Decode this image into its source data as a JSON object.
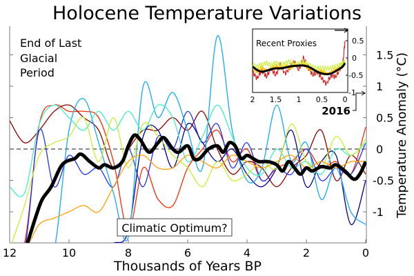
{
  "chart_data": {
    "type": "line",
    "title": "Holocene Temperature Variations",
    "xlabel": "Thousands of Years BP",
    "ylabel": "Temperature Anomaly (°C)",
    "xlim": [
      12,
      0
    ],
    "ylim": [
      -1.5,
      1.93
    ],
    "x_ticks": [
      "12",
      "10",
      "8",
      "6",
      "4",
      "2",
      "0"
    ],
    "y_ticks": [
      "1.5",
      "1",
      "0.5",
      "0",
      "-0.5",
      "-1"
    ],
    "y_tick_values": [
      1.5,
      1,
      0.5,
      0,
      -0.5,
      -1
    ],
    "zero_line": "dashed",
    "annotations": {
      "glacial": [
        "End of Last",
        "Glacial",
        "Period"
      ],
      "optimum": "Climatic Optimum?",
      "year_marker": "2016"
    },
    "x": [
      12,
      11.5,
      11,
      10.5,
      10,
      9.5,
      9,
      8.5,
      8,
      7.5,
      7,
      6.5,
      6,
      5.5,
      5,
      4.5,
      4,
      3.5,
      3,
      2.5,
      2,
      1.5,
      1,
      0.5,
      0
    ],
    "series": [
      {
        "color": "#ff2a00",
        "values": [
          -1.6,
          -1.5,
          0.4,
          0.7,
          0.6,
          0.6,
          0.5,
          -0.2,
          -1.3,
          -0.3,
          -0.8,
          -0.9,
          -0.3,
          0.0,
          0.3,
          -0.2,
          0.0,
          -0.5,
          -0.3,
          -0.2,
          0.0,
          -0.3,
          -0.2,
          -0.4,
          0.35
        ]
      },
      {
        "color": "#8b0000",
        "values": [
          0.45,
          0.1,
          0.3,
          0.6,
          0.7,
          0.5,
          0.3,
          -0.3,
          0.0,
          0.3,
          0.3,
          0.5,
          0.3,
          0.6,
          0.0,
          -0.4,
          -0.2,
          -0.3,
          -0.6,
          -0.3,
          -0.1,
          0.3,
          -0.5,
          -0.1,
          -0.4
        ]
      },
      {
        "color": "#2030ff",
        "values": [
          -1.6,
          -1.6,
          0.3,
          -0.6,
          -0.1,
          -0.4,
          -0.3,
          -0.6,
          0.0,
          -0.6,
          0.2,
          0.0,
          0.6,
          0.1,
          0.4,
          -0.3,
          0.1,
          -0.5,
          -0.3,
          -0.4,
          0.0,
          -0.5,
          -0.3,
          -0.4,
          0.1
        ]
      },
      {
        "color": "#000090",
        "values": [
          -1.6,
          -1.6,
          -1.6,
          -1.6,
          -1.6,
          -1.6,
          -1.6,
          -1.5,
          -1.3,
          0.2,
          0.3,
          -0.3,
          0.4,
          0.1,
          -0.2,
          0.0,
          -0.4,
          -0.6,
          -0.3,
          0.3,
          -0.6,
          -0.2,
          -0.1,
          -1.2,
          -0.5
        ]
      },
      {
        "color": "#10a8ff",
        "values": [
          -1.6,
          -1.6,
          -1.6,
          -1.6,
          0.3,
          0.8,
          0.1,
          -0.7,
          -1.4,
          1.0,
          0.5,
          0.9,
          0.3,
          -0.3,
          1.8,
          0.3,
          -0.5,
          -0.3,
          0.7,
          -0.2,
          0.1,
          -0.8,
          -0.3,
          -1.0,
          -1.2
        ]
      },
      {
        "color": "#40f0c8",
        "values": [
          -0.6,
          -0.7,
          0.4,
          0.7,
          0.5,
          0.3,
          0.6,
          0.3,
          0.6,
          0.3,
          0.7,
          0.5,
          -0.2,
          0.2,
          0.7,
          0.2,
          -0.3,
          -0.4,
          0.0,
          -0.3,
          -0.2,
          -0.4,
          0.0,
          -0.1,
          0.1
        ]
      },
      {
        "color": "#c8f030",
        "values": [
          -1.6,
          -0.9,
          -0.1,
          0.1,
          0.2,
          0.5,
          -0.2,
          0.5,
          -0.3,
          0.4,
          0.2,
          -0.1,
          -0.3,
          -0.6,
          -0.2,
          -0.5,
          -0.4,
          -0.2,
          -0.3,
          0.4,
          -0.2,
          -0.3,
          0.2,
          -0.1,
          0.15
        ]
      },
      {
        "color": "#ffa000",
        "values": [
          -1.6,
          -1.6,
          -1.2,
          -1.1,
          -1.0,
          -0.9,
          -1.0,
          -0.6,
          -0.2,
          -0.1,
          -0.3,
          -0.3,
          -0.1,
          -0.2,
          -0.3,
          -0.1,
          -0.2,
          -0.3,
          -0.2,
          -0.1,
          -0.3,
          -0.2,
          -0.3,
          -0.2,
          -0.2
        ]
      }
    ],
    "mean": {
      "color": "#000000",
      "x": [
        11.4,
        11.1,
        10.9,
        10.6,
        10.3,
        10.1,
        9.8,
        9.6,
        9.3,
        9.0,
        8.8,
        8.5,
        8.2,
        8.0,
        7.8,
        7.6,
        7.3,
        7.0,
        6.8,
        6.5,
        6.3,
        6.0,
        5.8,
        5.6,
        5.3,
        5.0,
        4.8,
        4.6,
        4.4,
        4.2,
        4.0,
        3.8,
        3.6,
        3.3,
        3.0,
        2.8,
        2.6,
        2.4,
        2.2,
        2.0,
        1.8,
        1.5,
        1.2,
        1.0,
        0.7,
        0.4,
        0.2,
        0
      ],
      "values": [
        -1.5,
        -1.05,
        -0.8,
        -0.6,
        -0.3,
        -0.2,
        -0.15,
        -0.08,
        -0.2,
        -0.3,
        -0.25,
        -0.3,
        -0.2,
        0.05,
        0.22,
        0.15,
        -0.05,
        0.1,
        0.18,
        0.0,
        -0.05,
        0.05,
        -0.15,
        -0.15,
        0.0,
        0.05,
        -0.05,
        0.1,
        0.05,
        -0.15,
        -0.1,
        -0.15,
        -0.2,
        -0.2,
        -0.25,
        -0.35,
        -0.2,
        -0.3,
        -0.4,
        -0.3,
        -0.35,
        -0.28,
        -0.3,
        -0.25,
        -0.35,
        -0.48,
        -0.4,
        -0.2
      ]
    },
    "inset": {
      "title": "Recent Proxies",
      "xlim": [
        2,
        0
      ],
      "ylim": [
        -1,
        0.8
      ],
      "x_ticks": [
        "2",
        "1.5",
        "1",
        "0.5",
        "0"
      ],
      "y_ticks": [
        "0.5",
        "0",
        "-0.5",
        "-1"
      ],
      "y_tick_values": [
        0.5,
        0,
        -0.5,
        -1
      ],
      "x": [
        2,
        1.9,
        1.8,
        1.7,
        1.6,
        1.5,
        1.4,
        1.3,
        1.2,
        1.1,
        1.0,
        0.9,
        0.8,
        0.7,
        0.6,
        0.5,
        0.4,
        0.3,
        0.2,
        0.1,
        0.05,
        0
      ],
      "mean": [
        -0.25,
        -0.35,
        -0.4,
        -0.37,
        -0.33,
        -0.3,
        -0.3,
        -0.28,
        -0.25,
        -0.23,
        -0.22,
        -0.22,
        -0.25,
        -0.32,
        -0.4,
        -0.45,
        -0.47,
        -0.45,
        -0.38,
        -0.3,
        -0.25,
        -0.15
      ],
      "proxies": [
        {
          "color": "#e00000",
          "values": [
            -0.4,
            -0.6,
            -0.35,
            -0.55,
            -0.3,
            -0.5,
            -0.2,
            -0.45,
            -0.3,
            -0.1,
            -0.35,
            0.0,
            -0.25,
            -0.5,
            -0.4,
            -0.6,
            -0.75,
            -0.5,
            -0.55,
            -0.3,
            -0.2,
            0.5
          ]
        },
        {
          "color": "#ffc000",
          "values": [
            -0.3,
            -0.4,
            -0.3,
            -0.35,
            -0.3,
            -0.25,
            -0.3,
            -0.2,
            -0.3,
            -0.2,
            -0.25,
            -0.15,
            -0.3,
            -0.35,
            -0.4,
            -0.4,
            -0.45,
            -0.4,
            -0.35,
            -0.3,
            -0.2,
            -0.1
          ]
        },
        {
          "color": "#c8f030",
          "values": [
            -0.2,
            -0.25,
            -0.2,
            -0.15,
            -0.2,
            -0.15,
            -0.2,
            -0.15,
            -0.1,
            -0.2,
            -0.15,
            -0.1,
            -0.2,
            -0.25,
            -0.3,
            -0.3,
            -0.3,
            -0.28,
            -0.25,
            -0.2,
            -0.15,
            -0.1
          ]
        }
      ]
    }
  }
}
